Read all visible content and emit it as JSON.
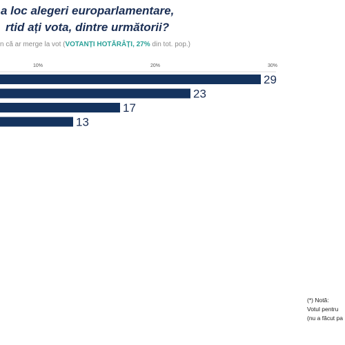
{
  "title": {
    "line1": "a loc alegeri europarlamentare,",
    "line2": "rtid ați vota, dintre următorii?"
  },
  "subtitle": {
    "prefix": "n că ar merge la vot (",
    "highlight": "VOTANȚI HOTĂRÂȚI, 27%",
    "suffix": " din tot. pop.)"
  },
  "note": {
    "heading": "(*) Notă:",
    "line1": "Votul pentru",
    "line2": "(nu a făcut pa"
  },
  "colors": {
    "bar": "#14335e",
    "title": "#1b2f55",
    "highlight": "#2aa198",
    "axis": "#dcdcdc"
  },
  "chart_data": {
    "type": "bar",
    "orientation": "horizontal",
    "xlim": [
      0,
      30
    ],
    "ticks": [
      10,
      20,
      30
    ],
    "tick_labels": [
      "10%",
      "20%",
      "30%"
    ],
    "values": [
      29,
      23,
      17,
      13
    ]
  }
}
